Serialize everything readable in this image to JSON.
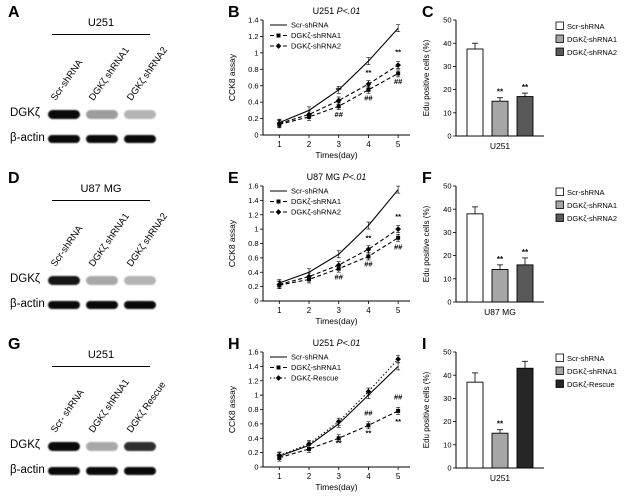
{
  "panels": [
    {
      "letter": "A",
      "cell_line": "U251",
      "lanes": [
        "Scr-shRNA",
        "DGKζ shRNA1",
        "DGKζ shRNA2"
      ],
      "proteins": [
        "DGKζ",
        "β-actin"
      ],
      "bands": [
        [
          1,
          0.4,
          0.3
        ],
        [
          1,
          1,
          1
        ]
      ]
    },
    {
      "letter": "B"
    },
    {
      "letter": "C"
    },
    {
      "letter": "D",
      "cell_line": "U87 MG",
      "lanes": [
        "Scr-shRNA",
        "DGKζ shRNA1",
        "DGKζ shRNA2"
      ],
      "proteins": [
        "DGKζ",
        "β-actin"
      ],
      "bands": [
        [
          0.95,
          0.35,
          0.3
        ],
        [
          1,
          1,
          1
        ]
      ]
    },
    {
      "letter": "E"
    },
    {
      "letter": "F"
    },
    {
      "letter": "G",
      "cell_line": "U251",
      "lanes": [
        "Scr- shRNA",
        "DGKζ shRNA1",
        "DGKζ Rescue"
      ],
      "proteins": [
        "DGKζ",
        "β-actin"
      ],
      "bands": [
        [
          1,
          0.35,
          0.85
        ],
        [
          1,
          1,
          1
        ]
      ]
    },
    {
      "letter": "H"
    },
    {
      "letter": "I"
    }
  ],
  "chart_data": [
    {
      "type": "line",
      "panel": "B",
      "title": "U251",
      "subtitle": "P<.01",
      "xlabel": "Times(day)",
      "ylabel": "CCK8 assay",
      "x": [
        1,
        2,
        3,
        4,
        5
      ],
      "ylim": [
        0,
        1.4
      ],
      "ytick_step": 0.2,
      "legend_position": "top-left",
      "series": [
        {
          "name": "Scr-shRNA",
          "dash": "solid",
          "marker": "none",
          "values": [
            0.15,
            0.3,
            0.55,
            0.9,
            1.3
          ]
        },
        {
          "name": "DGKζ-shRNA1",
          "dash": "dashed",
          "marker": "square",
          "values": [
            0.13,
            0.22,
            0.35,
            0.55,
            0.75
          ]
        },
        {
          "name": "DGKζ-shRNA2",
          "dash": "dashed",
          "marker": "diamond",
          "values": [
            0.14,
            0.25,
            0.42,
            0.62,
            0.85
          ]
        }
      ],
      "annotations": [
        {
          "x": 3,
          "y": 0.52,
          "text": "**"
        },
        {
          "x": 3,
          "y": 0.22,
          "text": "##"
        },
        {
          "x": 4,
          "y": 0.73,
          "text": "**"
        },
        {
          "x": 4,
          "y": 0.42,
          "text": "##"
        },
        {
          "x": 5,
          "y": 0.98,
          "text": "**"
        },
        {
          "x": 5,
          "y": 0.62,
          "text": "##"
        }
      ]
    },
    {
      "type": "bar",
      "panel": "C",
      "cell_line": "U251",
      "ylabel": "Edu positive cells (%)",
      "ylim": [
        0,
        50
      ],
      "ytick_step": 10,
      "legend_position": "right",
      "categories": [
        "Scr-shRNA",
        "DGKζ-shRNA1",
        "DGKζ-shRNA2"
      ],
      "values": [
        37.5,
        15,
        17
      ],
      "errors": [
        2.5,
        1.5,
        1.5
      ],
      "sig": [
        "",
        "**",
        "**"
      ],
      "colors": [
        "#ffffff",
        "#a6a6a6",
        "#595959"
      ]
    },
    {
      "type": "line",
      "panel": "E",
      "title": "U87 MG",
      "subtitle": "P<.01",
      "xlabel": "Times(day)",
      "ylabel": "CCK8 assay",
      "x": [
        1,
        2,
        3,
        4,
        5
      ],
      "ylim": [
        0,
        1.6
      ],
      "ytick_step": 0.2,
      "legend_position": "top-left",
      "series": [
        {
          "name": "Scr-shRNA",
          "dash": "solid",
          "marker": "none",
          "values": [
            0.25,
            0.4,
            0.65,
            1.05,
            1.55
          ]
        },
        {
          "name": "DGKζ-shRNA1",
          "dash": "dashed",
          "marker": "square",
          "values": [
            0.22,
            0.3,
            0.45,
            0.62,
            0.88
          ]
        },
        {
          "name": "DGKζ-shRNA2",
          "dash": "dashed",
          "marker": "diamond",
          "values": [
            0.23,
            0.34,
            0.5,
            0.72,
            1.0
          ]
        }
      ],
      "annotations": [
        {
          "x": 3,
          "y": 0.3,
          "text": "##"
        },
        {
          "x": 4,
          "y": 0.84,
          "text": "**"
        },
        {
          "x": 4,
          "y": 0.48,
          "text": "##"
        },
        {
          "x": 5,
          "y": 1.14,
          "text": "**"
        },
        {
          "x": 5,
          "y": 0.72,
          "text": "##"
        }
      ]
    },
    {
      "type": "bar",
      "panel": "F",
      "cell_line": "U87 MG",
      "ylabel": "Edu positive cells (%)",
      "ylim": [
        0,
        50
      ],
      "ytick_step": 10,
      "legend_position": "right",
      "categories": [
        "Scr-shRNA",
        "DGKζ-shRNA1",
        "DGKζ-shRNA2"
      ],
      "values": [
        38,
        14,
        16
      ],
      "errors": [
        3,
        2,
        3
      ],
      "sig": [
        "",
        "**",
        "**"
      ],
      "colors": [
        "#ffffff",
        "#a6a6a6",
        "#595959"
      ]
    },
    {
      "type": "line",
      "panel": "H",
      "title": "U251",
      "subtitle": "P<.01",
      "xlabel": "Times(day)",
      "ylabel": "CCK8 assay",
      "x": [
        1,
        2,
        3,
        4,
        5
      ],
      "ylim": [
        0,
        1.6
      ],
      "ytick_step": 0.2,
      "legend_position": "top-left",
      "series": [
        {
          "name": "Scr-shRNA",
          "dash": "solid",
          "marker": "none",
          "values": [
            0.15,
            0.3,
            0.6,
            1.0,
            1.4
          ]
        },
        {
          "name": "DGKζ-shRNA1",
          "dash": "dashed",
          "marker": "square",
          "values": [
            0.13,
            0.25,
            0.4,
            0.58,
            0.78
          ]
        },
        {
          "name": "DGKζ-Rescue",
          "dash": "dotted",
          "marker": "diamond",
          "values": [
            0.16,
            0.32,
            0.63,
            1.05,
            1.5
          ]
        }
      ],
      "annotations": [
        {
          "x": 3,
          "y": 0.3,
          "text": "**"
        },
        {
          "x": 4,
          "y": 0.72,
          "text": "##"
        },
        {
          "x": 4,
          "y": 0.44,
          "text": "**"
        },
        {
          "x": 5,
          "y": 0.94,
          "text": "##"
        },
        {
          "x": 5,
          "y": 0.6,
          "text": "**"
        }
      ]
    },
    {
      "type": "bar",
      "panel": "I",
      "cell_line": "U251",
      "ylabel": "Edu positive cells (%)",
      "ylim": [
        0,
        50
      ],
      "ytick_step": 10,
      "legend_position": "right",
      "categories": [
        "Scr-shRNA",
        "DGKζ-shRNA1",
        "DGKζ-Rescue"
      ],
      "values": [
        37,
        15,
        43
      ],
      "errors": [
        4,
        1.5,
        3
      ],
      "sig": [
        "",
        "**",
        ""
      ],
      "colors": [
        "#ffffff",
        "#a6a6a6",
        "#262626"
      ]
    }
  ]
}
